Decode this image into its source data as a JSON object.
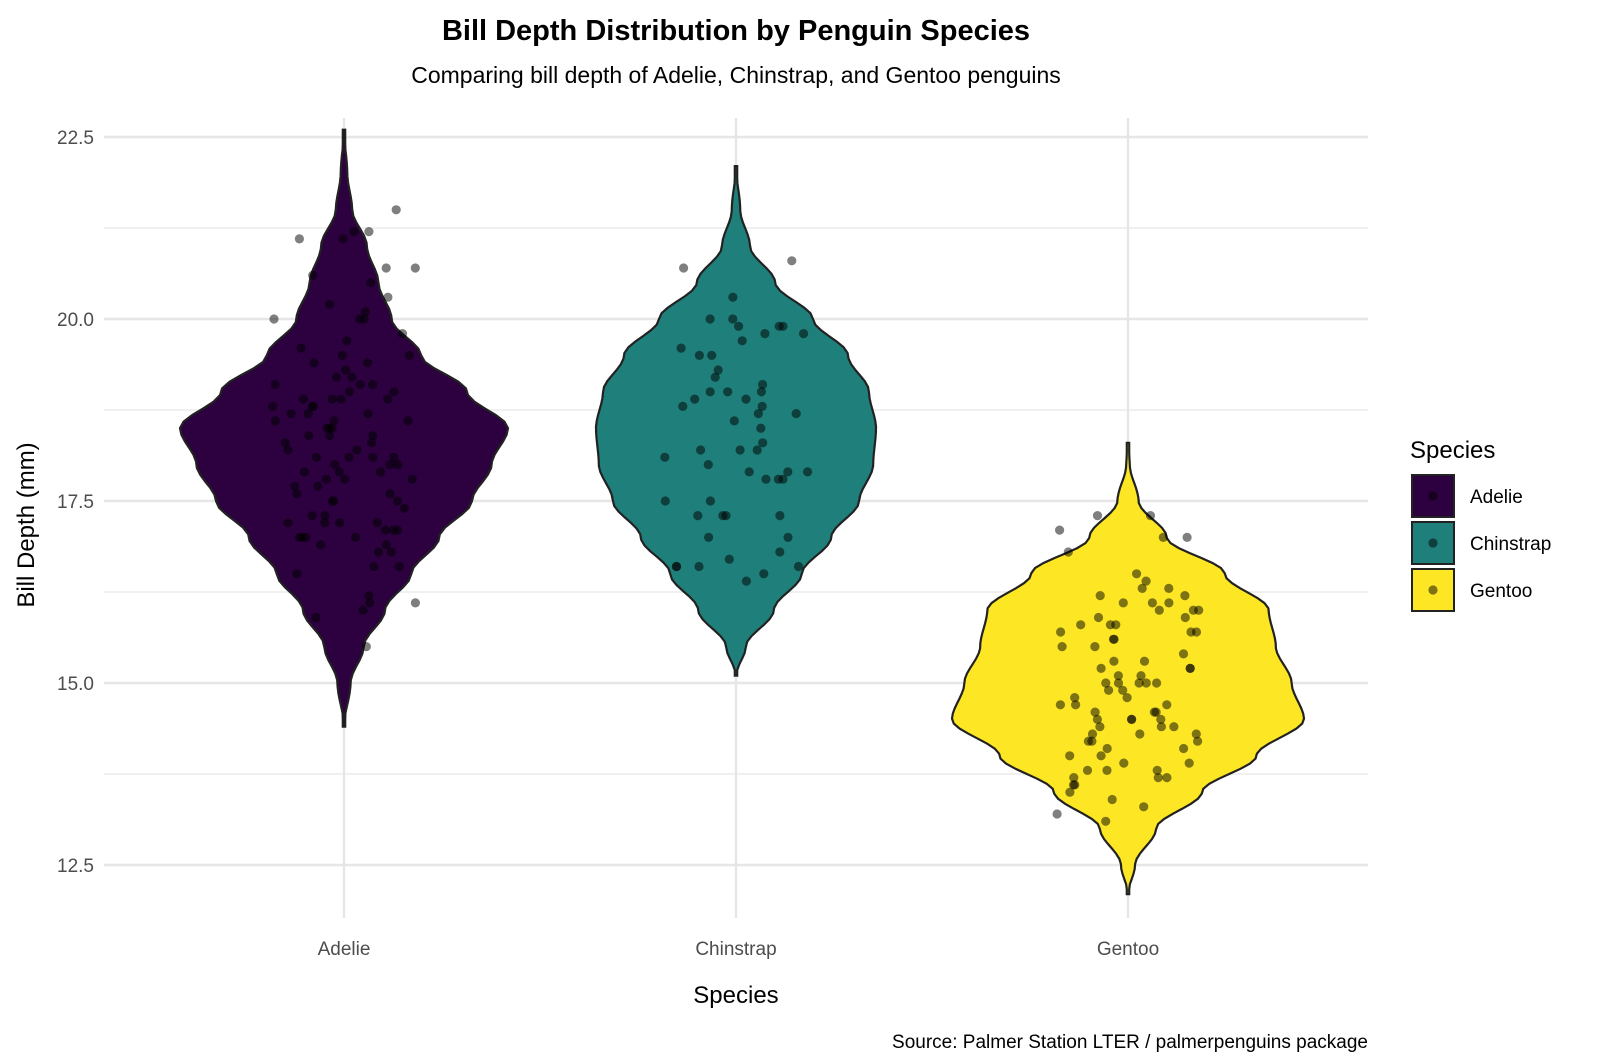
{
  "chart_data": {
    "type": "violin",
    "title": "Bill Depth Distribution by Penguin Species",
    "subtitle": "Comparing bill depth of Adelie, Chinstrap, and Gentoo penguins",
    "xlabel": "Species",
    "ylabel": "Bill Depth (mm)",
    "caption": "Source: Palmer Station LTER / palmerpenguins package",
    "categories": [
      "Adelie",
      "Chinstrap",
      "Gentoo"
    ],
    "y_ticks": [
      "12.5",
      "15.0",
      "17.5",
      "20.0",
      "22.5"
    ],
    "ylim": [
      11.7,
      23.7
    ],
    "grid": true,
    "legend": {
      "title": "Species",
      "position": "right"
    },
    "series": [
      {
        "name": "Adelie",
        "color": "#2d0140",
        "density": [
          [
            14.4,
            0.0
          ],
          [
            15.0,
            0.04
          ],
          [
            15.5,
            0.12
          ],
          [
            16.0,
            0.25
          ],
          [
            16.5,
            0.41
          ],
          [
            17.0,
            0.58
          ],
          [
            17.5,
            0.78
          ],
          [
            18.0,
            0.9
          ],
          [
            18.5,
            1.0
          ],
          [
            19.0,
            0.75
          ],
          [
            19.5,
            0.47
          ],
          [
            20.0,
            0.29
          ],
          [
            20.5,
            0.21
          ],
          [
            21.0,
            0.14
          ],
          [
            21.5,
            0.05
          ],
          [
            22.0,
            0.02
          ],
          [
            22.6,
            0.0
          ]
        ],
        "points": [
          15.5,
          15.9,
          16.0,
          16.1,
          16.1,
          16.2,
          16.5,
          16.6,
          16.6,
          16.8,
          16.8,
          16.9,
          16.9,
          17.0,
          17.0,
          17.0,
          17.0,
          17.1,
          17.1,
          17.1,
          17.2,
          17.2,
          17.2,
          17.2,
          17.3,
          17.3,
          17.4,
          17.5,
          17.5,
          17.5,
          17.6,
          17.6,
          17.7,
          17.7,
          17.8,
          17.8,
          17.8,
          17.9,
          17.9,
          17.9,
          18.0,
          18.0,
          18.0,
          18.1,
          18.1,
          18.1,
          18.1,
          18.2,
          18.2,
          18.3,
          18.3,
          18.4,
          18.4,
          18.4,
          18.5,
          18.5,
          18.5,
          18.6,
          18.6,
          18.6,
          18.7,
          18.7,
          18.7,
          18.8,
          18.8,
          18.8,
          18.9,
          18.9,
          18.9,
          18.9,
          19.0,
          19.0,
          19.1,
          19.1,
          19.1,
          19.2,
          19.2,
          19.3,
          19.4,
          19.4,
          19.5,
          19.5,
          19.6,
          19.7,
          19.8,
          20.0,
          20.0,
          20.0,
          20.1,
          20.2,
          20.3,
          20.5,
          20.6,
          20.7,
          20.7,
          21.1,
          21.1,
          21.2,
          21.2,
          21.5
        ]
      },
      {
        "name": "Chinstrap",
        "color": "#1f7f7a",
        "density": [
          [
            15.1,
            0.0
          ],
          [
            15.5,
            0.07
          ],
          [
            16.0,
            0.27
          ],
          [
            16.5,
            0.47
          ],
          [
            17.0,
            0.68
          ],
          [
            17.5,
            0.88
          ],
          [
            18.0,
            0.98
          ],
          [
            18.5,
            1.0
          ],
          [
            19.0,
            0.95
          ],
          [
            19.5,
            0.8
          ],
          [
            20.0,
            0.55
          ],
          [
            20.5,
            0.28
          ],
          [
            21.0,
            0.1
          ],
          [
            21.5,
            0.03
          ],
          [
            22.1,
            0.0
          ]
        ],
        "points": [
          16.4,
          16.5,
          16.6,
          16.6,
          16.6,
          16.6,
          16.7,
          16.8,
          17.0,
          17.0,
          17.3,
          17.3,
          17.3,
          17.3,
          17.5,
          17.5,
          17.8,
          17.8,
          17.8,
          17.9,
          17.9,
          17.9,
          18.0,
          18.1,
          18.2,
          18.2,
          18.2,
          18.3,
          18.5,
          18.6,
          18.7,
          18.7,
          18.8,
          18.8,
          18.9,
          18.9,
          19.0,
          19.0,
          19.0,
          19.1,
          19.2,
          19.3,
          19.5,
          19.5,
          19.6,
          19.7,
          19.8,
          19.8,
          19.9,
          19.9,
          19.9,
          20.0,
          20.0,
          20.3,
          20.7,
          20.8
        ]
      },
      {
        "name": "Gentoo",
        "color": "#fde724",
        "density": [
          [
            12.1,
            0.0
          ],
          [
            12.5,
            0.04
          ],
          [
            13.0,
            0.16
          ],
          [
            13.5,
            0.42
          ],
          [
            14.0,
            0.73
          ],
          [
            14.5,
            1.0
          ],
          [
            15.0,
            0.93
          ],
          [
            15.5,
            0.84
          ],
          [
            16.0,
            0.8
          ],
          [
            16.5,
            0.55
          ],
          [
            17.0,
            0.22
          ],
          [
            17.5,
            0.06
          ],
          [
            18.0,
            0.01
          ],
          [
            18.3,
            0.0
          ]
        ],
        "points": [
          13.1,
          13.2,
          13.3,
          13.4,
          13.5,
          13.6,
          13.6,
          13.7,
          13.7,
          13.7,
          13.8,
          13.8,
          13.8,
          13.9,
          13.9,
          14.0,
          14.0,
          14.1,
          14.1,
          14.2,
          14.2,
          14.2,
          14.3,
          14.3,
          14.3,
          14.4,
          14.4,
          14.4,
          14.5,
          14.5,
          14.5,
          14.5,
          14.6,
          14.6,
          14.6,
          14.7,
          14.7,
          14.7,
          14.8,
          14.8,
          14.9,
          14.9,
          15.0,
          15.0,
          15.0,
          15.0,
          15.0,
          15.1,
          15.1,
          15.2,
          15.2,
          15.2,
          15.3,
          15.3,
          15.4,
          15.5,
          15.5,
          15.6,
          15.6,
          15.7,
          15.7,
          15.7,
          15.8,
          15.8,
          15.8,
          15.9,
          15.9,
          16.0,
          16.0,
          16.0,
          16.1,
          16.1,
          16.1,
          16.2,
          16.2,
          16.3,
          16.3,
          16.4,
          16.5,
          16.8,
          17.0,
          17.0,
          17.1,
          17.3,
          17.3
        ]
      }
    ]
  }
}
